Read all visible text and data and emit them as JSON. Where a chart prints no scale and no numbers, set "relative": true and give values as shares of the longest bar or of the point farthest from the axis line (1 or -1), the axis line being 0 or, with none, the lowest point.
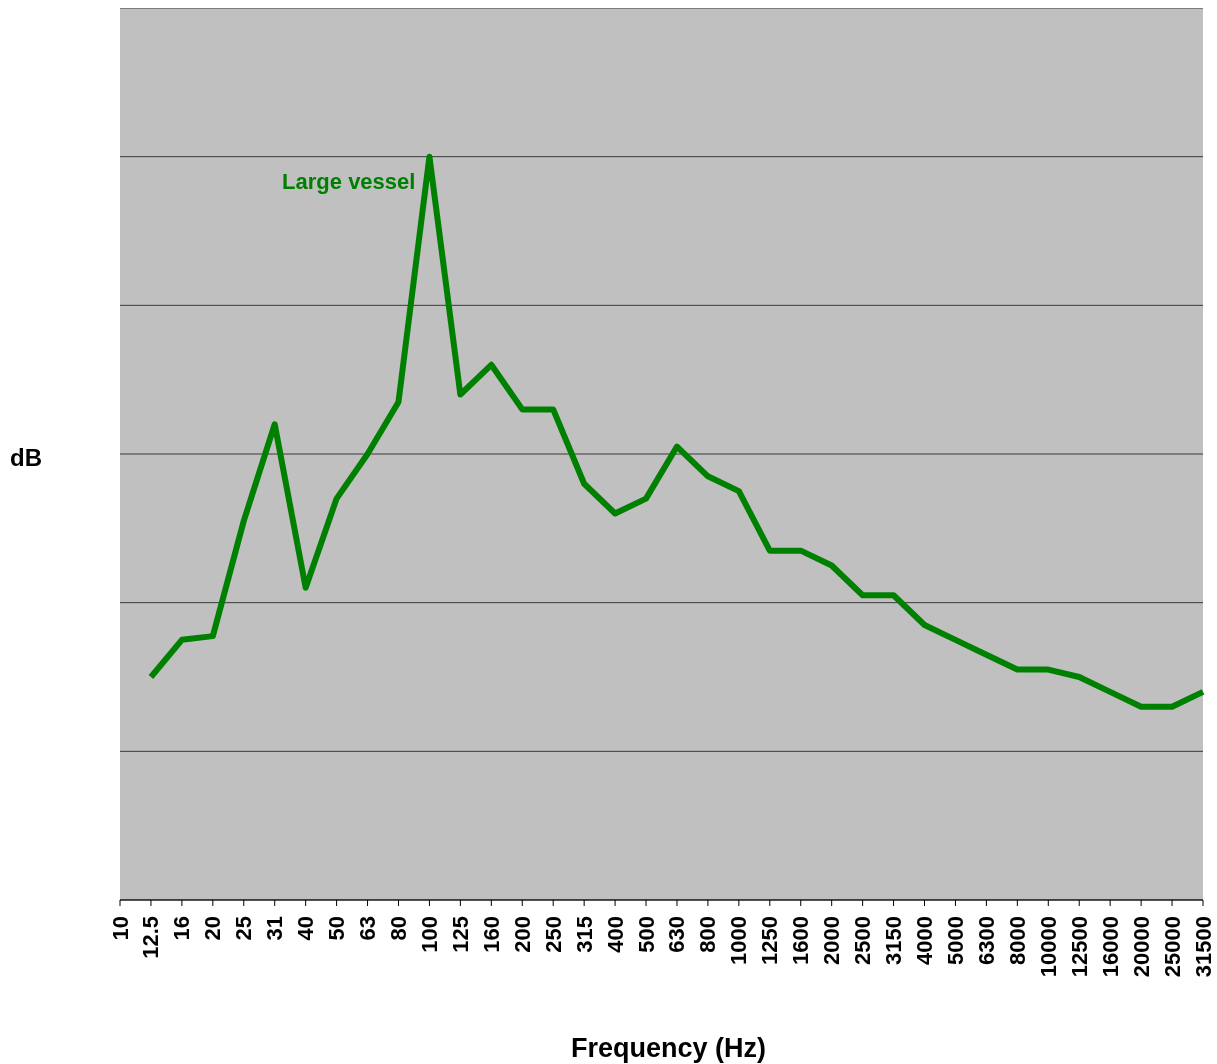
{
  "chart_data": {
    "type": "line",
    "relative": true,
    "xlabel": "Frequency (Hz)",
    "ylabel": "dB",
    "grid": "y",
    "marker": "none",
    "line_style": "solid",
    "categories": [
      "10",
      "12.5",
      "16",
      "20",
      "25",
      "31",
      "40",
      "50",
      "63",
      "80",
      "100",
      "125",
      "160",
      "200",
      "250",
      "315",
      "400",
      "500",
      "630",
      "800",
      "1000",
      "1250",
      "1600",
      "2000",
      "2500",
      "3150",
      "4000",
      "5000",
      "6300",
      "8000",
      "10000",
      "12500",
      "16000",
      "20000",
      "25000",
      "31500"
    ],
    "series": [
      {
        "name": "Large vessel",
        "color": "#008000",
        "values": [
          null,
          0.3,
          0.35,
          0.355,
          0.51,
          0.64,
          0.42,
          0.54,
          0.6,
          0.67,
          1.0,
          0.68,
          0.72,
          0.66,
          0.66,
          0.56,
          0.52,
          0.54,
          0.61,
          0.57,
          0.55,
          0.47,
          0.47,
          0.45,
          0.41,
          0.41,
          0.37,
          0.35,
          0.33,
          0.31,
          0.31,
          0.3,
          0.28,
          0.26,
          0.26,
          0.28
        ]
      }
    ]
  }
}
